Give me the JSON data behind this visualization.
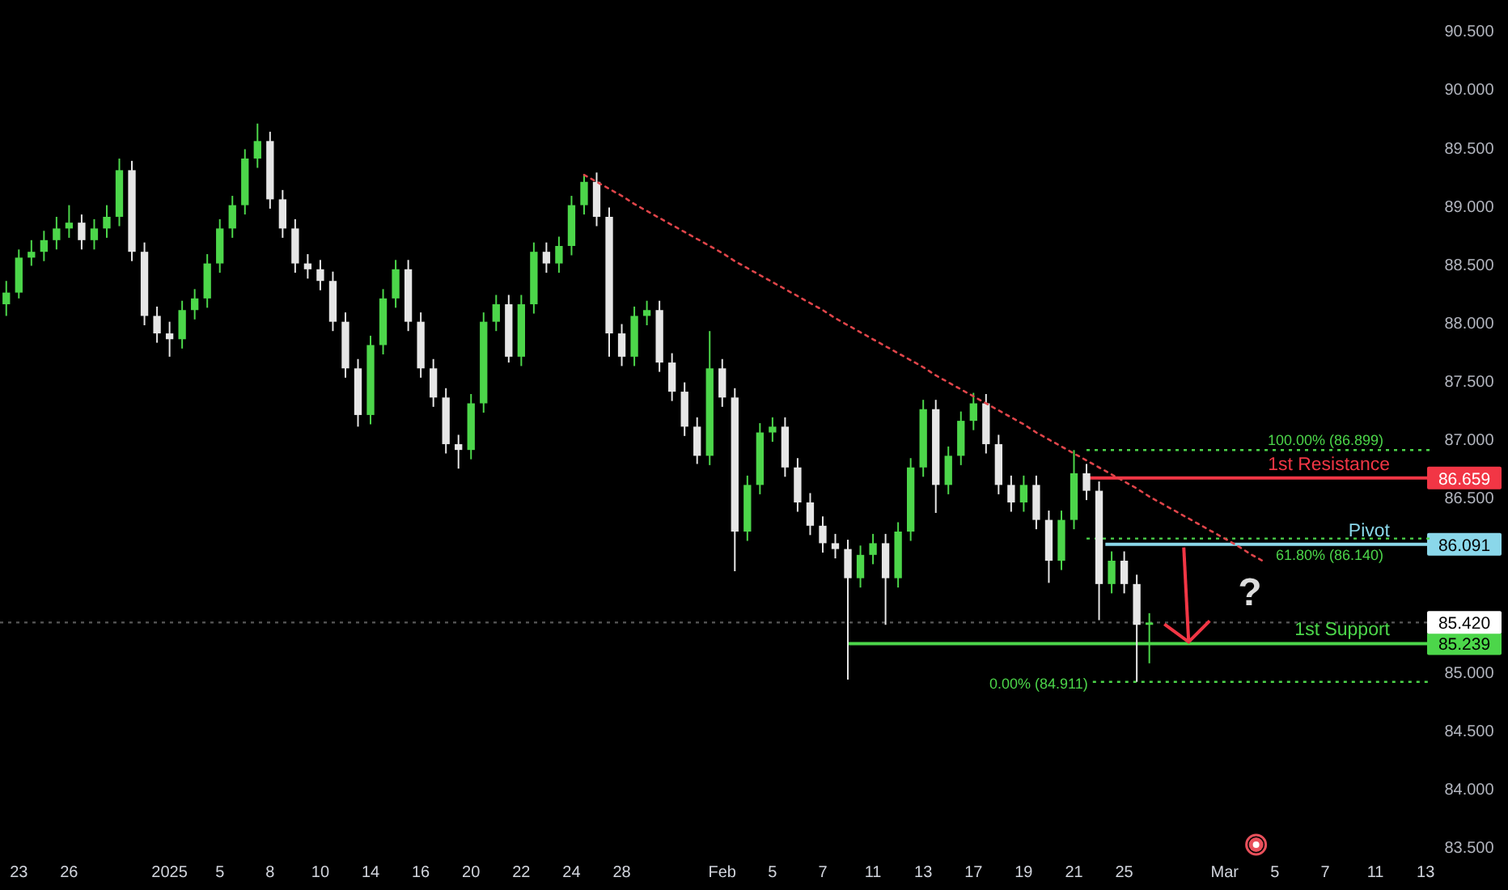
{
  "chart_data": {
    "type": "candlestick",
    "categories": [
      null,
      "23",
      null,
      null,
      null,
      "26",
      null,
      null,
      null,
      null,
      null,
      null,
      null,
      "2025",
      null,
      null,
      null,
      "5",
      null,
      null,
      null,
      "8",
      null,
      null,
      null,
      "10",
      null,
      null,
      null,
      "14",
      null,
      null,
      null,
      "16",
      null,
      null,
      null,
      "20",
      null,
      null,
      null,
      "22",
      null,
      null,
      null,
      "24",
      null,
      null,
      null,
      "28",
      null,
      null,
      null,
      null,
      null,
      null,
      null,
      "Feb",
      null,
      null,
      null,
      "5",
      null,
      null,
      null,
      "7",
      null,
      null,
      null,
      "11",
      null,
      null,
      null,
      "13",
      null,
      null,
      null,
      "17",
      null,
      null,
      null,
      "19",
      null,
      null,
      null,
      "21",
      null,
      null,
      null,
      "25",
      null,
      null,
      null,
      null,
      null,
      null,
      null,
      "Mar",
      null,
      null,
      null,
      "5",
      null,
      null,
      null,
      "7",
      null,
      null,
      null,
      "11",
      null,
      null,
      null,
      "13"
    ],
    "ohlc": [
      [
        88.15,
        88.35,
        88.05,
        88.25
      ],
      [
        88.25,
        88.62,
        88.2,
        88.55
      ],
      [
        88.55,
        88.7,
        88.48,
        88.6
      ],
      [
        88.6,
        88.78,
        88.52,
        88.7
      ],
      [
        88.7,
        88.9,
        88.62,
        88.8
      ],
      [
        88.8,
        89.0,
        88.72,
        88.85
      ],
      [
        88.85,
        88.92,
        88.62,
        88.7
      ],
      [
        88.7,
        88.88,
        88.62,
        88.8
      ],
      [
        88.8,
        89.0,
        88.72,
        88.9
      ],
      [
        88.9,
        89.4,
        88.82,
        89.3
      ],
      [
        89.3,
        89.38,
        88.52,
        88.6
      ],
      [
        88.6,
        88.68,
        87.97,
        88.05
      ],
      [
        88.05,
        88.13,
        87.82,
        87.9
      ],
      [
        87.9,
        88.0,
        87.7,
        87.85
      ],
      [
        87.85,
        88.18,
        87.77,
        88.1
      ],
      [
        88.1,
        88.28,
        88.02,
        88.2
      ],
      [
        88.2,
        88.58,
        88.12,
        88.5
      ],
      [
        88.5,
        88.88,
        88.42,
        88.8
      ],
      [
        88.8,
        89.08,
        88.72,
        89.0
      ],
      [
        89.0,
        89.48,
        88.92,
        89.4
      ],
      [
        89.4,
        89.7,
        89.32,
        89.55
      ],
      [
        89.55,
        89.63,
        88.97,
        89.05
      ],
      [
        89.05,
        89.13,
        88.72,
        88.8
      ],
      [
        88.8,
        88.88,
        88.42,
        88.5
      ],
      [
        88.5,
        88.58,
        88.37,
        88.45
      ],
      [
        88.45,
        88.53,
        88.27,
        88.35
      ],
      [
        88.35,
        88.43,
        87.92,
        88.0
      ],
      [
        88.0,
        88.08,
        87.52,
        87.6
      ],
      [
        87.6,
        87.68,
        87.1,
        87.2
      ],
      [
        87.2,
        87.88,
        87.12,
        87.8
      ],
      [
        87.8,
        88.28,
        87.72,
        88.2
      ],
      [
        88.2,
        88.53,
        88.12,
        88.45
      ],
      [
        88.45,
        88.53,
        87.92,
        88.0
      ],
      [
        88.0,
        88.08,
        87.52,
        87.6
      ],
      [
        87.6,
        87.68,
        87.27,
        87.35
      ],
      [
        87.35,
        87.43,
        86.87,
        86.95
      ],
      [
        86.95,
        87.03,
        86.74,
        86.9
      ],
      [
        86.9,
        87.38,
        86.82,
        87.3
      ],
      [
        87.3,
        88.08,
        87.22,
        88.0
      ],
      [
        88.0,
        88.23,
        87.92,
        88.15
      ],
      [
        88.15,
        88.23,
        87.65,
        87.7
      ],
      [
        87.7,
        88.23,
        87.62,
        88.15
      ],
      [
        88.15,
        88.68,
        88.07,
        88.6
      ],
      [
        88.6,
        88.68,
        88.42,
        88.5
      ],
      [
        88.5,
        88.73,
        88.42,
        88.65
      ],
      [
        88.65,
        89.08,
        88.57,
        89.0
      ],
      [
        89.0,
        89.26,
        88.92,
        89.2
      ],
      [
        89.2,
        89.28,
        88.82,
        88.9
      ],
      [
        88.9,
        88.98,
        87.7,
        87.9
      ],
      [
        87.9,
        87.98,
        87.62,
        87.7
      ],
      [
        87.7,
        88.13,
        87.62,
        88.05
      ],
      [
        88.05,
        88.18,
        87.97,
        88.1
      ],
      [
        88.1,
        88.18,
        87.57,
        87.65
      ],
      [
        87.65,
        87.73,
        87.32,
        87.4
      ],
      [
        87.4,
        87.48,
        87.02,
        87.1
      ],
      [
        87.1,
        87.18,
        86.78,
        86.85
      ],
      [
        86.85,
        87.92,
        86.77,
        87.6
      ],
      [
        87.6,
        87.68,
        87.27,
        87.35
      ],
      [
        87.35,
        87.43,
        85.86,
        86.2
      ],
      [
        86.2,
        86.68,
        86.12,
        86.6
      ],
      [
        86.6,
        87.13,
        86.52,
        87.05
      ],
      [
        87.05,
        87.18,
        86.97,
        87.1
      ],
      [
        87.1,
        87.18,
        86.67,
        86.75
      ],
      [
        86.75,
        86.83,
        86.37,
        86.45
      ],
      [
        86.45,
        86.53,
        86.17,
        86.25
      ],
      [
        86.25,
        86.33,
        86.02,
        86.1
      ],
      [
        86.1,
        86.18,
        85.97,
        86.05
      ],
      [
        86.05,
        86.13,
        84.93,
        85.8
      ],
      [
        85.8,
        86.08,
        85.72,
        86.0
      ],
      [
        86.0,
        86.18,
        85.92,
        86.1
      ],
      [
        86.1,
        86.18,
        85.4,
        85.8
      ],
      [
        85.8,
        86.28,
        85.72,
        86.2
      ],
      [
        86.2,
        86.83,
        86.12,
        86.75
      ],
      [
        86.75,
        87.33,
        86.67,
        87.25
      ],
      [
        87.25,
        87.33,
        86.36,
        86.6
      ],
      [
        86.6,
        86.93,
        86.52,
        86.85
      ],
      [
        86.85,
        87.23,
        86.77,
        87.15
      ],
      [
        87.15,
        87.39,
        87.07,
        87.3
      ],
      [
        87.3,
        87.38,
        86.87,
        86.95
      ],
      [
        86.95,
        87.03,
        86.52,
        86.6
      ],
      [
        86.6,
        86.68,
        86.37,
        86.45
      ],
      [
        86.45,
        86.68,
        86.37,
        86.6
      ],
      [
        86.6,
        86.68,
        86.22,
        86.3
      ],
      [
        86.3,
        86.38,
        85.76,
        85.95
      ],
      [
        85.95,
        86.38,
        85.87,
        86.3
      ],
      [
        86.3,
        86.899,
        86.22,
        86.7
      ],
      [
        86.7,
        86.78,
        86.47,
        86.55
      ],
      [
        86.55,
        86.63,
        85.44,
        85.75
      ],
      [
        85.75,
        86.03,
        85.67,
        85.95
      ],
      [
        85.95,
        86.03,
        85.67,
        85.75
      ],
      [
        85.75,
        85.83,
        84.911,
        85.4
      ],
      [
        85.4,
        85.5,
        85.07,
        85.42
      ],
      null,
      null,
      null,
      null,
      null,
      null,
      null,
      null,
      null,
      null,
      null,
      null,
      null,
      null,
      null,
      null,
      null,
      null,
      null,
      null,
      null,
      null
    ],
    "colors": [
      "#4cd64a",
      "#4cd64a",
      "#4cd64a",
      "#4cd64a",
      "#4cd64a",
      "#4cd64a",
      "#e6e6e6",
      "#4cd64a",
      "#4cd64a",
      "#4cd64a",
      "#e6e6e6",
      "#e6e6e6",
      "#e6e6e6",
      "#e6e6e6",
      "#4cd64a",
      "#4cd64a",
      "#4cd64a",
      "#4cd64a",
      "#4cd64a",
      "#4cd64a",
      "#4cd64a",
      "#e6e6e6",
      "#e6e6e6",
      "#e6e6e6",
      "#e6e6e6",
      "#e6e6e6",
      "#e6e6e6",
      "#e6e6e6",
      "#e6e6e6",
      "#4cd64a",
      "#4cd64a",
      "#4cd64a",
      "#e6e6e6",
      "#e6e6e6",
      "#e6e6e6",
      "#e6e6e6",
      "#e6e6e6",
      "#4cd64a",
      "#4cd64a",
      "#4cd64a",
      "#e6e6e6",
      "#4cd64a",
      "#4cd64a",
      "#e6e6e6",
      "#4cd64a",
      "#4cd64a",
      "#4cd64a",
      "#e6e6e6",
      "#e6e6e6",
      "#e6e6e6",
      "#4cd64a",
      "#4cd64a",
      "#e6e6e6",
      "#e6e6e6",
      "#e6e6e6",
      "#e6e6e6",
      "#4cd64a",
      "#e6e6e6",
      "#e6e6e6",
      "#4cd64a",
      "#4cd64a",
      "#4cd64a",
      "#e6e6e6",
      "#e6e6e6",
      "#e6e6e6",
      "#e6e6e6",
      "#e6e6e6",
      "#e6e6e6",
      "#4cd64a",
      "#4cd64a",
      "#e6e6e6",
      "#4cd64a",
      "#4cd64a",
      "#4cd64a",
      "#e6e6e6",
      "#4cd64a",
      "#4cd64a",
      "#4cd64a",
      "#e6e6e6",
      "#e6e6e6",
      "#e6e6e6",
      "#4cd64a",
      "#e6e6e6",
      "#e6e6e6",
      "#4cd64a",
      "#4cd64a",
      "#e6e6e6",
      "#e6e6e6",
      "#4cd64a",
      "#e6e6e6",
      "#e6e6e6",
      "#4cd64a",
      null,
      null,
      null,
      null,
      null,
      null,
      null,
      null,
      null,
      null,
      null,
      null,
      null,
      null,
      null,
      null,
      null,
      null,
      null,
      null,
      null,
      null
    ],
    "series": [
      {
        "type": "line",
        "values": [
          null,
          null,
          null,
          null,
          null,
          null,
          null,
          null,
          null,
          null,
          null,
          null,
          null,
          null,
          null,
          null,
          null,
          null,
          null,
          null,
          null,
          null,
          null,
          null,
          null,
          null,
          null,
          null,
          null,
          null,
          null,
          null,
          null,
          null,
          null,
          null,
          null,
          null,
          null,
          null,
          null,
          null,
          null,
          null,
          null,
          null,
          89.26,
          89.2,
          89.14,
          89.08,
          89.01,
          88.95,
          88.89,
          88.83,
          88.77,
          88.71,
          88.65,
          88.59,
          88.52,
          88.46,
          88.4,
          88.34,
          88.28,
          88.22,
          88.16,
          88.1,
          88.03,
          87.97,
          87.91,
          87.85,
          87.79,
          87.73,
          87.67,
          87.61,
          87.54,
          87.48,
          87.42,
          87.36,
          87.3,
          87.24,
          87.18,
          87.12,
          87.05,
          86.99,
          86.93,
          86.87,
          86.81,
          86.75,
          86.69,
          86.63,
          86.57,
          86.5,
          86.44,
          86.38,
          86.32,
          86.26,
          86.2,
          86.14,
          86.08,
          86.01,
          85.95,
          null,
          null,
          null,
          null,
          null,
          null,
          null,
          null,
          null,
          null,
          null,
          null,
          null
        ],
        "color": "#e0454a",
        "line_style": "dotted"
      }
    ],
    "ylim": [
      83.5,
      90.76
    ],
    "yticks": [
      {
        "value": 83.5,
        "label": "83.500"
      },
      {
        "value": 84,
        "label": "84.000"
      },
      {
        "value": 84.5,
        "label": "84.500"
      },
      {
        "value": 85,
        "label": "85.000"
      },
      {
        "value": 86.5,
        "label": "86.500"
      },
      {
        "value": 87,
        "label": "87.000"
      },
      {
        "value": 87.5,
        "label": "87.500"
      },
      {
        "value": 88,
        "label": "88.000"
      },
      {
        "value": 88.5,
        "label": "88.500"
      },
      {
        "value": 89,
        "label": "89.000"
      },
      {
        "value": 89.5,
        "label": "89.500"
      },
      {
        "value": 90,
        "label": "90.000"
      },
      {
        "value": 90.5,
        "label": "90.500"
      }
    ],
    "ref_lines": [
      {
        "axis": "y",
        "value": 86.659,
        "label": "86.659",
        "color": "#f23645"
      },
      {
        "axis": "y",
        "value": 86.091,
        "label": "86.091",
        "color": "#8ad7ea"
      },
      {
        "axis": "y",
        "value": 85.239,
        "label": "85.239",
        "color": "#4cd64a"
      },
      {
        "axis": "y",
        "value": 85.42,
        "label": "85.420",
        "color": "#ffffff",
        "line_style": "dotted"
      },
      {
        "axis": "y",
        "value": 86.899,
        "label": "100.00% (86.899)",
        "color": "#4cd64a",
        "line_style": "dotted"
      },
      {
        "axis": "y",
        "value": 86.14,
        "label": "61.80% (86.140)",
        "color": "#4cd64a",
        "line_style": "dotted"
      },
      {
        "axis": "y",
        "value": 84.911,
        "label": "0.00% (84.911)",
        "color": "#4cd64a",
        "line_style": "dotted"
      }
    ],
    "annotations": [
      {
        "text": "1st Resistance",
        "y": 86.659
      },
      {
        "text": "Pivot",
        "y": 86.091
      },
      {
        "text": "1st Support",
        "y": 85.239
      },
      {
        "text": "?",
        "y": 85.239
      }
    ]
  }
}
